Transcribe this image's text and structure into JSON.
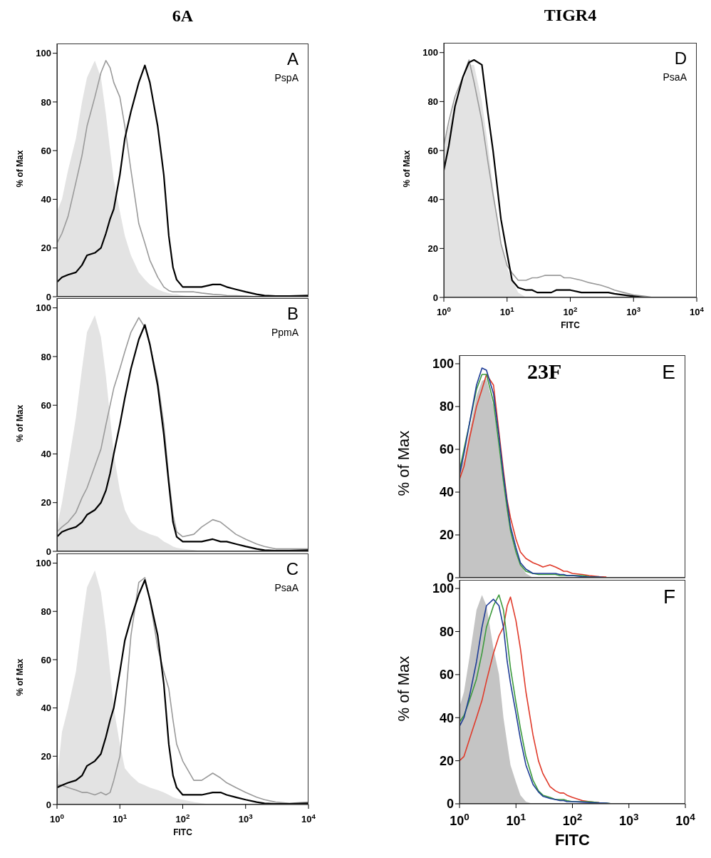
{
  "chart_data": [
    {
      "type": "line",
      "title": "6A",
      "ylabel": "% of Max",
      "annotations": [
        "A",
        "PspA"
      ],
      "log": "x",
      "xlim": [
        1,
        10000
      ],
      "ylim": [
        0,
        104
      ],
      "yticks": [
        0,
        20,
        40,
        60,
        80,
        100
      ],
      "tick_labels": "y",
      "x": [
        1,
        1.2,
        1.5,
        2,
        2.5,
        3,
        4,
        5,
        6,
        7,
        8,
        10,
        12,
        15,
        20,
        25,
        30,
        40,
        50,
        60,
        70,
        80,
        100,
        150,
        200,
        300,
        400,
        500,
        700,
        1000,
        1500,
        2000,
        3000,
        5000,
        10000
      ],
      "series": [
        {
          "type": "area",
          "color": "#e3e3e3",
          "values": [
            35,
            40,
            52,
            65,
            80,
            90,
            97,
            90,
            75,
            60,
            48,
            35,
            25,
            17,
            10,
            7,
            5,
            3,
            2,
            1.5,
            1,
            1,
            0.5,
            0,
            0,
            0,
            0,
            0,
            0,
            0,
            0,
            0,
            0,
            0,
            0
          ]
        },
        {
          "color": "#9a9a9a",
          "values": [
            22,
            26,
            33,
            47,
            58,
            70,
            82,
            92,
            97,
            94,
            88,
            82,
            70,
            52,
            30,
            22,
            15,
            8,
            4,
            2.5,
            2,
            2,
            2,
            2,
            1.5,
            1,
            0.8,
            0.5,
            0.4,
            0.3,
            0,
            null,
            null,
            null,
            null
          ]
        },
        {
          "color": "#000000",
          "values": [
            6,
            8,
            9,
            10,
            13,
            17,
            18,
            20,
            26,
            32,
            36,
            50,
            65,
            76,
            88,
            95,
            88,
            70,
            50,
            25,
            12,
            7,
            4,
            4,
            4,
            5,
            5,
            4,
            3,
            2,
            1,
            0.5,
            0.3,
            0.3,
            0.5
          ]
        }
      ]
    },
    {
      "type": "line",
      "ylabel": "% of Max",
      "annotations": [
        "B",
        "PpmA"
      ],
      "log": "x",
      "xlim": [
        1,
        10000
      ],
      "ylim": [
        0,
        104
      ],
      "yticks": [
        0,
        20,
        40,
        60,
        80,
        100
      ],
      "tick_labels": "y",
      "x": [
        1,
        1.2,
        1.5,
        2,
        2.5,
        3,
        4,
        5,
        6,
        7,
        8,
        10,
        12,
        15,
        20,
        25,
        30,
        40,
        50,
        60,
        70,
        80,
        100,
        150,
        200,
        300,
        400,
        500,
        700,
        1000,
        1500,
        2000,
        3000,
        5000,
        10000
      ],
      "series": [
        {
          "type": "area",
          "color": "#e3e3e3",
          "values": [
            10,
            20,
            35,
            55,
            75,
            90,
            97,
            88,
            72,
            55,
            40,
            25,
            17,
            12,
            9,
            8,
            7,
            6,
            4,
            3,
            2,
            1.5,
            1,
            0.5,
            0,
            0,
            0,
            0,
            0,
            0,
            0,
            0,
            0,
            0,
            0
          ]
        },
        {
          "color": "#9a9a9a",
          "values": [
            8,
            10,
            12,
            16,
            22,
            26,
            35,
            42,
            52,
            60,
            67,
            75,
            82,
            90,
            96,
            92,
            85,
            70,
            52,
            30,
            15,
            8,
            6,
            7,
            10,
            13,
            12,
            10,
            7,
            5,
            3,
            2,
            1,
            1,
            1
          ]
        },
        {
          "color": "#000000",
          "values": [
            6,
            8,
            9,
            10,
            12,
            15,
            17,
            20,
            25,
            32,
            40,
            52,
            63,
            75,
            87,
            93,
            85,
            68,
            48,
            28,
            12,
            6,
            4,
            4,
            4,
            5,
            4,
            4,
            3,
            2,
            1,
            0.5,
            0.3,
            0.3,
            0.5
          ]
        }
      ]
    },
    {
      "type": "line",
      "xlabel": "FITC",
      "ylabel": "% of Max",
      "annotations": [
        "C",
        "PsaA"
      ],
      "log": "x",
      "xlim": [
        1,
        10000
      ],
      "xticks": [
        {
          "value": 1,
          "label": "10$^{0}$"
        },
        {
          "value": 10,
          "label": "10$^{1}$"
        },
        {
          "value": 100,
          "label": "10$^{2}$"
        },
        {
          "value": 1000,
          "label": "10$^{3}$"
        },
        {
          "value": 10000,
          "label": "10$^{4}$"
        }
      ],
      "ylim": [
        0,
        104
      ],
      "yticks": [
        0,
        20,
        40,
        60,
        80,
        100
      ],
      "x": [
        1,
        1.2,
        1.5,
        2,
        2.5,
        3,
        4,
        5,
        6,
        7,
        8,
        10,
        12,
        15,
        20,
        25,
        30,
        40,
        50,
        60,
        70,
        80,
        100,
        150,
        200,
        300,
        400,
        500,
        700,
        1000,
        1500,
        2000,
        3000,
        5000,
        10000
      ],
      "series": [
        {
          "type": "area",
          "color": "#e3e3e3",
          "values": [
            10,
            30,
            40,
            55,
            75,
            90,
            97,
            88,
            72,
            55,
            40,
            25,
            15,
            12,
            9,
            8,
            7,
            6,
            5,
            4,
            3,
            2.5,
            2,
            1,
            0.5,
            0,
            0,
            0,
            0,
            0,
            0,
            0,
            0,
            0,
            0
          ]
        },
        {
          "color": "#9a9a9a",
          "values": [
            8,
            8,
            7,
            6,
            5,
            5,
            4,
            5,
            4,
            5,
            10,
            20,
            40,
            70,
            92,
            94,
            85,
            65,
            55,
            48,
            35,
            25,
            18,
            10,
            10,
            13,
            11,
            9,
            7,
            5,
            3,
            2,
            1,
            0.5,
            1
          ]
        },
        {
          "color": "#000000",
          "values": [
            7,
            8,
            9,
            10,
            12,
            16,
            18,
            21,
            28,
            35,
            40,
            55,
            68,
            77,
            87,
            93,
            85,
            70,
            50,
            25,
            12,
            7,
            4,
            4,
            4,
            5,
            5,
            4,
            3,
            2,
            1,
            0.5,
            0.3,
            0.3,
            0.5
          ]
        }
      ]
    },
    {
      "type": "line",
      "title": "TIGR4",
      "xlabel": "FITC",
      "ylabel": "% of Max",
      "annotations": [
        "D",
        "PsaA"
      ],
      "log": "x",
      "xlim": [
        1,
        10000
      ],
      "xticks": [
        {
          "value": 1,
          "label": "10$^{0}$"
        },
        {
          "value": 10,
          "label": "10$^{1}$"
        },
        {
          "value": 100,
          "label": "10$^{2}$"
        },
        {
          "value": 1000,
          "label": "10$^{3}$"
        },
        {
          "value": 10000,
          "label": "10$^{4}$"
        }
      ],
      "ylim": [
        0,
        104
      ],
      "yticks": [
        0,
        20,
        40,
        60,
        80,
        100
      ],
      "x": [
        1,
        1.2,
        1.5,
        2,
        2.5,
        3,
        4,
        5,
        6,
        7,
        8,
        10,
        12,
        15,
        20,
        25,
        30,
        40,
        50,
        60,
        70,
        80,
        100,
        150,
        200,
        300,
        400,
        500,
        700,
        1000,
        1500,
        2000,
        3000,
        5000,
        10000
      ],
      "series": [
        {
          "type": "area",
          "color": "#e3e3e3",
          "values": [
            62,
            70,
            80,
            88,
            95,
            95,
            80,
            62,
            45,
            33,
            22,
            12,
            7,
            2,
            0,
            0,
            0,
            0,
            0,
            0,
            0,
            0,
            0,
            0,
            0,
            0,
            0,
            0,
            0,
            0,
            0,
            0,
            0,
            0,
            0
          ]
        },
        {
          "color": "#9a9a9a",
          "values": [
            62,
            72,
            82,
            90,
            97,
            88,
            72,
            55,
            42,
            32,
            22,
            13,
            10,
            7,
            7,
            8,
            8,
            9,
            9,
            9,
            9,
            8,
            8,
            7,
            6,
            5,
            4,
            3,
            2,
            1,
            0.5,
            0,
            0,
            0,
            0
          ]
        },
        {
          "color": "#000000",
          "values": [
            52,
            62,
            78,
            90,
            96,
            97,
            95,
            75,
            60,
            45,
            32,
            18,
            7,
            4,
            3,
            3,
            2,
            2,
            2,
            3,
            3,
            3,
            3,
            2,
            2,
            2,
            2,
            1.5,
            1,
            0.5,
            0,
            0,
            0,
            0,
            0
          ]
        }
      ]
    },
    {
      "type": "line",
      "title": "23F",
      "ylabel": "% of Max",
      "annotations": [
        "E"
      ],
      "log": "x",
      "xlim": [
        1,
        10000
      ],
      "ylim": [
        0,
        104
      ],
      "yticks": [
        0,
        20,
        40,
        60,
        80,
        100
      ],
      "tick_labels": "y",
      "x": [
        1,
        1.2,
        1.5,
        2,
        2.5,
        3,
        4,
        5,
        6,
        7,
        8,
        10,
        12,
        15,
        20,
        25,
        30,
        40,
        50,
        60,
        70,
        80,
        100,
        150,
        200,
        300,
        400,
        500,
        700,
        1000,
        1500,
        2000,
        3000,
        5000,
        10000
      ],
      "series": [
        {
          "type": "area",
          "color": "#c4c4c4",
          "values": [
            50,
            55,
            68,
            85,
            92,
            93,
            80,
            60,
            45,
            32,
            22,
            12,
            6,
            2,
            0,
            0,
            0,
            0,
            0,
            0,
            0,
            0,
            0,
            0,
            0,
            0,
            0,
            0,
            0,
            0,
            0,
            0,
            0,
            0,
            0
          ]
        },
        {
          "color": "#e03a2a",
          "values": [
            46,
            52,
            65,
            80,
            88,
            95,
            90,
            68,
            50,
            36,
            28,
            18,
            12,
            9,
            7,
            6,
            5,
            6,
            5,
            4,
            3,
            3,
            2,
            1.5,
            1,
            0.5,
            0.3,
            null,
            null,
            null,
            null,
            null,
            null,
            null,
            null
          ]
        },
        {
          "color": "#3c9a3c",
          "values": [
            50,
            60,
            72,
            88,
            95,
            95,
            82,
            62,
            45,
            32,
            22,
            12,
            6,
            3,
            2,
            1.5,
            1.5,
            1.5,
            1.5,
            1,
            1,
            1,
            1,
            1,
            0.5,
            0.3,
            null,
            null,
            null,
            null,
            null,
            null,
            null,
            null,
            null
          ]
        },
        {
          "color": "#1e3c96",
          "values": [
            48,
            58,
            72,
            90,
            98,
            97,
            86,
            66,
            48,
            35,
            24,
            14,
            7,
            4,
            2,
            2,
            2,
            2,
            2,
            1.5,
            1.5,
            1,
            1,
            0.5,
            0.3,
            0.3,
            0,
            null,
            null,
            null,
            null,
            null,
            null,
            null,
            null
          ]
        }
      ]
    },
    {
      "type": "line",
      "xlabel": "FITC",
      "ylabel": "% of Max",
      "annotations": [
        "F"
      ],
      "log": "x",
      "xlim": [
        1,
        10000
      ],
      "xticks": [
        {
          "value": 1,
          "label": "10$^{0}$"
        },
        {
          "value": 10,
          "label": "10$^{1}$"
        },
        {
          "value": 100,
          "label": "10$^{2}$"
        },
        {
          "value": 1000,
          "label": "10$^{3}$"
        },
        {
          "value": 10000,
          "label": "10$^{4}$"
        }
      ],
      "ylim": [
        0,
        104
      ],
      "yticks": [
        0,
        20,
        40,
        60,
        80,
        100
      ],
      "x": [
        1,
        1.2,
        1.5,
        2,
        2.5,
        3,
        4,
        5,
        6,
        7,
        8,
        10,
        12,
        15,
        20,
        25,
        30,
        40,
        50,
        60,
        70,
        80,
        100,
        150,
        200,
        300,
        400,
        500,
        700,
        1000,
        1500,
        2000,
        3000,
        5000,
        10000
      ],
      "series": [
        {
          "type": "area",
          "color": "#c4c4c4",
          "values": [
            45,
            52,
            68,
            90,
            97,
            92,
            72,
            60,
            40,
            28,
            18,
            10,
            4,
            1,
            0,
            0,
            0,
            0,
            0,
            0,
            0,
            0,
            0,
            0,
            0,
            0,
            0,
            0,
            0,
            0,
            0,
            0,
            0,
            0,
            0
          ]
        },
        {
          "color": "#e03a2a",
          "values": [
            20,
            22,
            30,
            40,
            48,
            57,
            70,
            78,
            82,
            92,
            96,
            85,
            72,
            52,
            32,
            20,
            14,
            8,
            6,
            5,
            5,
            4,
            3,
            1.5,
            1,
            0.5,
            null,
            null,
            null,
            null,
            null,
            null,
            null,
            null,
            null
          ]
        },
        {
          "color": "#3c9a3c",
          "values": [
            38,
            41,
            48,
            58,
            70,
            82,
            92,
            97,
            90,
            76,
            63,
            47,
            35,
            22,
            11,
            6,
            4,
            3,
            2,
            2,
            2,
            1.5,
            1,
            1,
            1,
            0.5,
            0.3,
            0,
            null,
            null,
            null,
            null,
            null,
            null,
            null
          ]
        },
        {
          "color": "#1e3c96",
          "values": [
            36,
            40,
            50,
            66,
            82,
            92,
            95,
            92,
            82,
            66,
            56,
            42,
            30,
            18,
            9,
            5.5,
            3.5,
            2.5,
            2,
            1.5,
            1.5,
            1,
            1,
            0.8,
            0.6,
            0.4,
            0.3,
            0,
            null,
            null,
            null,
            null,
            null,
            null,
            null
          ]
        }
      ]
    }
  ]
}
